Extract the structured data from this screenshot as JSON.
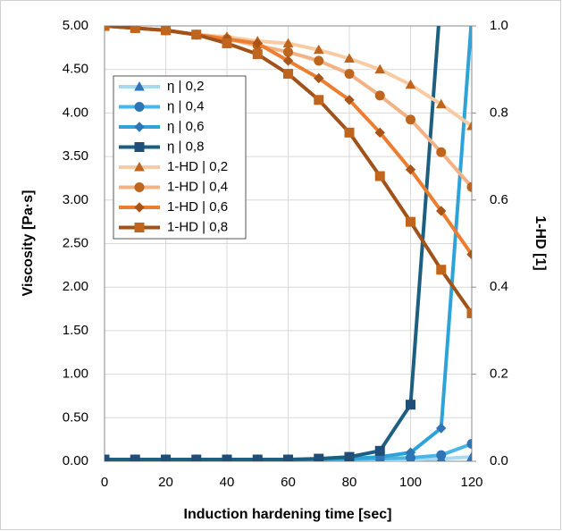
{
  "chart_data": {
    "type": "line",
    "y_title": "Viscosity [Pa·s]",
    "y2_title": "1-HD [1]",
    "x_title": "Induction hardening time [sec]",
    "x": [
      0,
      10,
      20,
      30,
      40,
      50,
      60,
      70,
      80,
      90,
      100,
      110,
      120
    ],
    "xlim": [
      0,
      120
    ],
    "xticks": [
      0,
      20,
      40,
      60,
      80,
      100,
      120
    ],
    "ylim": [
      0,
      5
    ],
    "yticks": [
      {
        "value": 0,
        "label": "0.00"
      },
      {
        "value": 0.5,
        "label": "0.50"
      },
      {
        "value": 1,
        "label": "1.00"
      },
      {
        "value": 1.5,
        "label": "1.50"
      },
      {
        "value": 2,
        "label": "2.00"
      },
      {
        "value": 2.5,
        "label": "2.50"
      },
      {
        "value": 3,
        "label": "3.00"
      },
      {
        "value": 3.5,
        "label": "3.50"
      },
      {
        "value": 4,
        "label": "4.00"
      },
      {
        "value": 4.5,
        "label": "4.50"
      },
      {
        "value": 5,
        "label": "5.00"
      }
    ],
    "y2lim": [
      0,
      1
    ],
    "y2ticks": [
      {
        "value": 0,
        "label": "0.0"
      },
      0.2,
      0.4,
      0.6,
      0.8,
      {
        "value": 1,
        "label": "1.0"
      }
    ],
    "grid": true,
    "legend": "upper left",
    "series": [
      {
        "name": "η | 0,2",
        "color": "#a9d9f2",
        "marker": "triangle",
        "marker_color": "#2e75b6",
        "values": [
          0.02,
          0.02,
          0.02,
          0.02,
          0.02,
          0.02,
          0.02,
          0.02,
          0.02,
          0.02,
          0.02,
          0.03,
          0.05
        ]
      },
      {
        "name": "η | 0,4",
        "color": "#4bb6e6",
        "marker": "circle",
        "marker_color": "#2e75b6",
        "values": [
          0.02,
          0.02,
          0.02,
          0.02,
          0.02,
          0.02,
          0.02,
          0.02,
          0.02,
          0.03,
          0.04,
          0.07,
          0.2
        ]
      },
      {
        "name": "η | 0,6",
        "color": "#2ea3d8",
        "marker": "diamond",
        "marker_color": "#2e75b6",
        "values": [
          0.02,
          0.02,
          0.02,
          0.02,
          0.02,
          0.02,
          0.02,
          0.02,
          0.03,
          0.05,
          0.1,
          0.38,
          5.1
        ]
      },
      {
        "name": "η | 0,8",
        "color": "#1d5f80",
        "marker": "square",
        "marker_color": "#1f4e79",
        "values": [
          0.02,
          0.02,
          0.02,
          0.02,
          0.02,
          0.02,
          0.02,
          0.03,
          0.05,
          0.12,
          0.65,
          5.4,
          null
        ]
      },
      {
        "name": "1-HD | 0,2",
        "color": "#f8cba3",
        "marker": "triangle",
        "marker_color": "#c0651d",
        "axis": "y2",
        "values": [
          1.0,
          0.995,
          0.99,
          0.98,
          0.975,
          0.965,
          0.96,
          0.945,
          0.925,
          0.9,
          0.865,
          0.82,
          0.77
        ]
      },
      {
        "name": "1-HD | 0,4",
        "color": "#f4b183",
        "marker": "circle",
        "marker_color": "#c0651d",
        "axis": "y2",
        "values": [
          1.0,
          0.995,
          0.99,
          0.98,
          0.97,
          0.955,
          0.94,
          0.92,
          0.89,
          0.84,
          0.785,
          0.71,
          0.63
        ]
      },
      {
        "name": "1-HD | 0,6",
        "color": "#ed7d31",
        "marker": "diamond",
        "marker_color": "#a9551a",
        "axis": "y2",
        "values": [
          1.0,
          0.995,
          0.99,
          0.98,
          0.97,
          0.96,
          0.92,
          0.88,
          0.83,
          0.755,
          0.67,
          0.575,
          0.475
        ]
      },
      {
        "name": "1-HD | 0,8",
        "color": "#a0521a",
        "marker": "square",
        "marker_color": "#c0651d",
        "axis": "y2",
        "values": [
          1.0,
          0.995,
          0.99,
          0.98,
          0.96,
          0.935,
          0.89,
          0.83,
          0.755,
          0.655,
          0.55,
          0.44,
          0.34
        ]
      }
    ]
  }
}
